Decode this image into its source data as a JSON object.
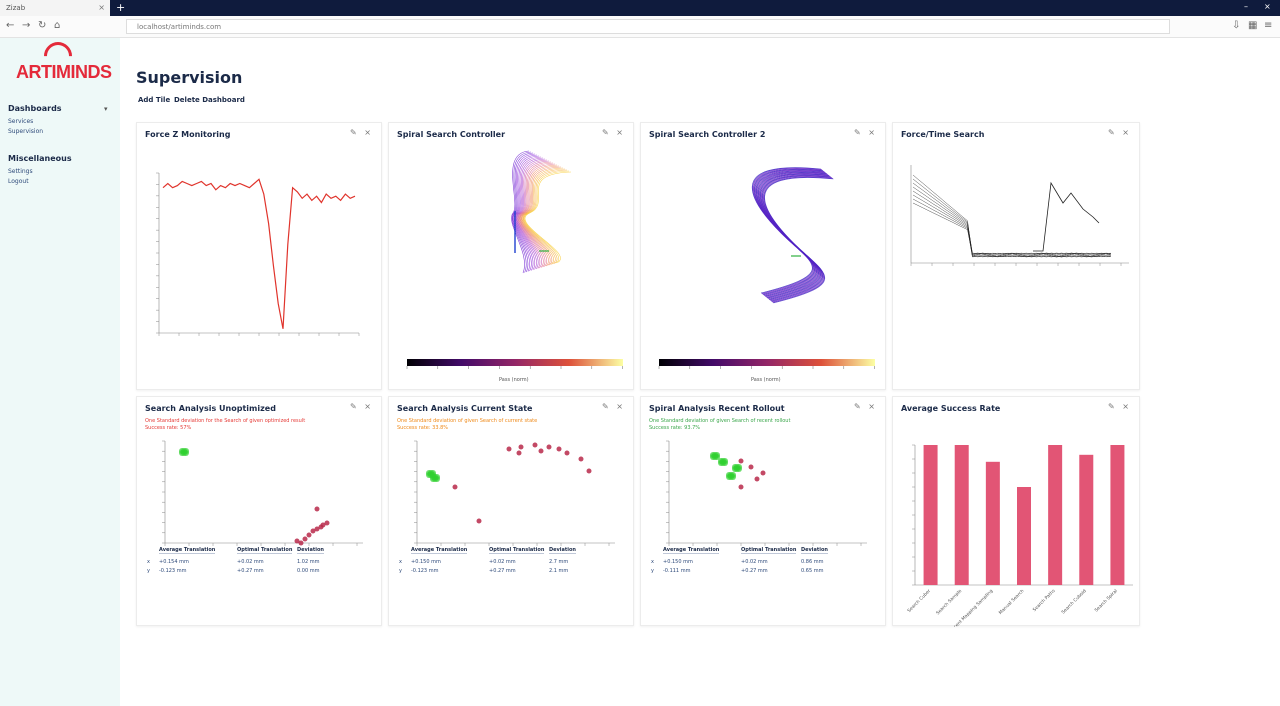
{
  "browser": {
    "tab_title": "Zizab",
    "url": "localhost/artiminds.com"
  },
  "sidebar": {
    "logo_text": "ARTIMINDS",
    "sections": [
      {
        "title": "Dashboards",
        "items": [
          "Services",
          "Supervision"
        ]
      },
      {
        "title": "Miscellaneous",
        "items": [
          "Settings",
          "Logout"
        ]
      }
    ]
  },
  "page": {
    "title": "Supervision",
    "toolbar": {
      "add_tile": "Add Tile",
      "delete_dashboard": "Delete Dashboard"
    }
  },
  "cards": [
    {
      "title": "Force Z Monitoring"
    },
    {
      "title": "Spiral Search Controller"
    },
    {
      "title": "Spiral Search Controller 2"
    },
    {
      "title": "Force/Time Search"
    },
    {
      "title": "Search Analysis Unoptimized",
      "subtitle": "One Standard deviation for the Search of given optimized result",
      "subtitle2": "Success rate: 57%",
      "accent": "#e53935"
    },
    {
      "title": "Search Analysis Current State",
      "subtitle": "One Standard deviation of given Search of current state",
      "subtitle2": "Success rate: 33.8%",
      "accent": "#ef8a1a"
    },
    {
      "title": "Spiral Analysis Recent Rollout",
      "subtitle": "One Standard deviation of given Search of recent rollout",
      "subtitle2": "Success rate: 93.7%",
      "accent": "#3aa64a"
    },
    {
      "title": "Average Success Rate"
    }
  ],
  "colorbar": {
    "label": "Pass (norm)"
  },
  "stats_headers": [
    "Average Translation",
    "Optimal Translation",
    "Deviation"
  ],
  "stats_tables": [
    {
      "rows": [
        [
          "x",
          "+0.154 mm",
          "+0.02 mm",
          "1.02 mm"
        ],
        [
          "y",
          "-0.123 mm",
          "+0.27 mm",
          "0.00 mm"
        ]
      ]
    },
    {
      "rows": [
        [
          "x",
          "+0.150 mm",
          "+0.02 mm",
          "2.7 mm"
        ],
        [
          "y",
          "-0.123 mm",
          "+0.27 mm",
          "2.1 mm"
        ]
      ]
    },
    {
      "rows": [
        [
          "x",
          "+0.150 mm",
          "+0.02 mm",
          "0.86 mm"
        ],
        [
          "y",
          "-0.111 mm",
          "+0.27 mm",
          "0.65 mm"
        ]
      ]
    }
  ],
  "chart_data": [
    {
      "type": "line",
      "title": "Force Z Monitoring",
      "x": [
        0,
        1,
        2,
        3,
        4,
        5,
        6,
        7,
        8,
        9,
        10,
        11,
        12,
        13,
        14,
        15,
        16,
        17,
        18,
        19,
        20,
        21,
        22,
        23,
        24,
        25,
        26,
        27,
        28,
        29,
        30,
        31,
        32,
        33,
        34,
        35,
        36,
        37,
        38,
        39,
        40
      ],
      "values": [
        -3,
        -1,
        -3,
        -2,
        0,
        -1,
        -2,
        -1,
        0,
        -2,
        -1,
        -4,
        -2,
        -3,
        -1,
        -2,
        -1,
        -2,
        -3,
        -1,
        1,
        -6,
        -20,
        -40,
        -58,
        -70,
        -30,
        -3,
        -5,
        -8,
        -6,
        -9,
        -7,
        -10,
        -6,
        -8,
        -7,
        -9,
        -6,
        -8,
        -7
      ],
      "color": "#e0342c"
    },
    {
      "type": "line",
      "title": "Force/Time Search",
      "series_count": 8,
      "color": "#222222"
    },
    {
      "type": "bar",
      "title": "Average Success Rate",
      "categories": [
        "Search Cuber",
        "Search Sample",
        "Recent Mapping Sampling",
        "Manual Search",
        "Search Paths",
        "Search Cuboid",
        "Search Spiral"
      ],
      "values": [
        100,
        100,
        88,
        70,
        100,
        93,
        100
      ],
      "ylim": [
        0,
        100
      ],
      "color": "#e25575"
    }
  ]
}
